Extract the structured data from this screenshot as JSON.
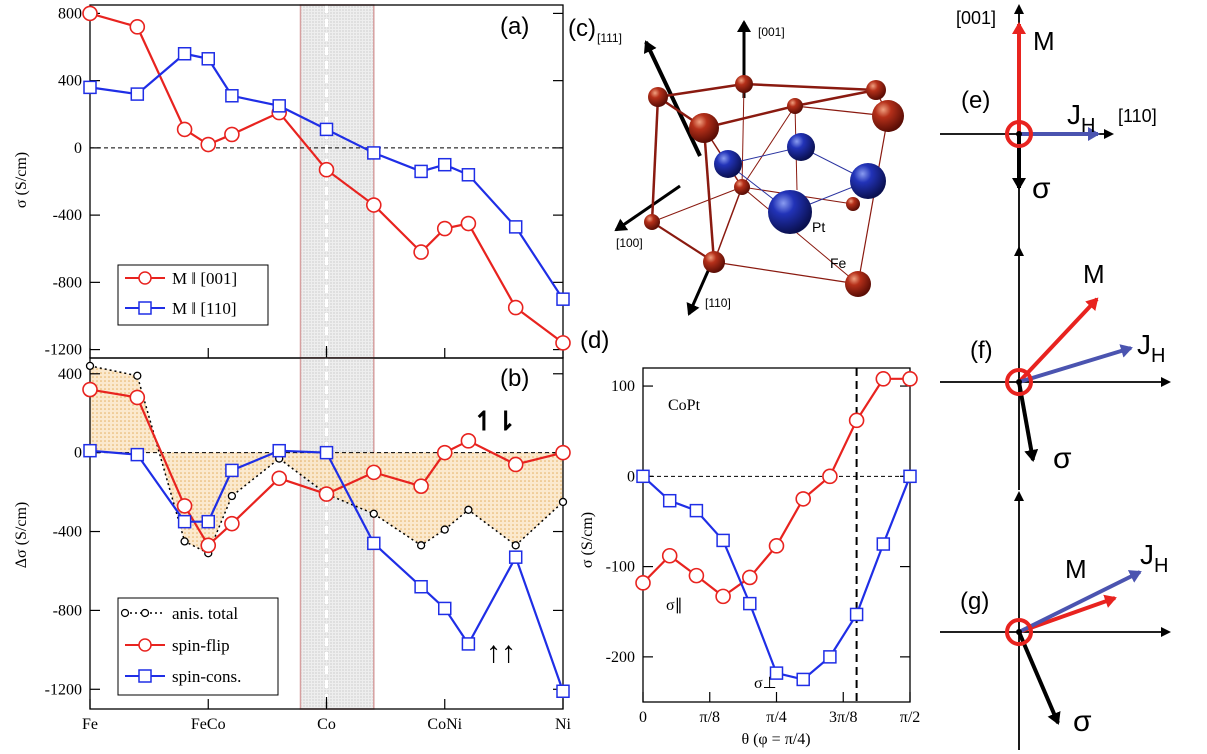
{
  "chart_data": [
    {
      "type": "line",
      "panel_label": "(a)",
      "ylabel": "σ (S/cm)",
      "ylim": [
        -1250,
        850
      ],
      "yticks": [
        800,
        400,
        0,
        -400,
        -800,
        -1200
      ],
      "xticks": [
        "Fe",
        "FeCo",
        "Co",
        "CoNi",
        "Ni"
      ],
      "xtick_pos": [
        0,
        0.25,
        0.5,
        0.75,
        1.0
      ],
      "xlim": [
        0,
        1
      ],
      "shaded_region": [
        0.445,
        0.6
      ],
      "legend": "lower-left",
      "series": [
        {
          "name": "M ‖ [001]",
          "color": "#e8231f",
          "marker": "circle",
          "x": [
            0,
            0.1,
            0.2,
            0.25,
            0.3,
            0.4,
            0.5,
            0.6,
            0.7,
            0.75,
            0.8,
            0.9,
            1.0
          ],
          "y": [
            800,
            720,
            110,
            20,
            80,
            210,
            -130,
            -340,
            -620,
            -480,
            -450,
            -950,
            -1160
          ]
        },
        {
          "name": "M ‖ [110]",
          "color": "#1f2ee6",
          "marker": "square",
          "x": [
            0,
            0.1,
            0.2,
            0.25,
            0.3,
            0.4,
            0.5,
            0.6,
            0.7,
            0.75,
            0.8,
            0.9,
            1.0
          ],
          "y": [
            360,
            320,
            560,
            530,
            310,
            250,
            110,
            -30,
            -140,
            -100,
            -160,
            -470,
            -900
          ]
        }
      ]
    },
    {
      "type": "line",
      "panel_label": "(b)",
      "ylabel": "Δσ (S/cm)",
      "ylim": [
        -1300,
        480
      ],
      "yticks": [
        400,
        0,
        -400,
        -800,
        -1200
      ],
      "xticks": [
        "Fe",
        "FeCo",
        "Co",
        "CoNi",
        "Ni"
      ],
      "xtick_pos": [
        0,
        0.25,
        0.5,
        0.75,
        1.0
      ],
      "xlim": [
        0,
        1
      ],
      "shaded_region": [
        0.445,
        0.6
      ],
      "legend": "lower-left",
      "annotations": [
        "↿⇂",
        "↑↑"
      ],
      "series": [
        {
          "name": "anis. total",
          "color": "#000000",
          "marker": "small-circle",
          "x": [
            0,
            0.1,
            0.2,
            0.25,
            0.3,
            0.4,
            0.5,
            0.6,
            0.7,
            0.75,
            0.8,
            0.9,
            1.0
          ],
          "y": [
            440,
            390,
            -450,
            -510,
            -220,
            -30,
            -210,
            -310,
            -470,
            -390,
            -290,
            -470,
            -250
          ]
        },
        {
          "name": "spin-flip",
          "color": "#e8231f",
          "marker": "circle",
          "x": [
            0,
            0.1,
            0.2,
            0.25,
            0.3,
            0.4,
            0.5,
            0.6,
            0.7,
            0.75,
            0.8,
            0.9,
            1.0
          ],
          "y": [
            320,
            280,
            -270,
            -470,
            -360,
            -130,
            -210,
            -100,
            -170,
            0,
            60,
            -60,
            0
          ]
        },
        {
          "name": "spin-cons.",
          "color": "#1f2ee6",
          "marker": "square",
          "x": [
            0,
            0.1,
            0.2,
            0.25,
            0.3,
            0.4,
            0.5,
            0.6,
            0.7,
            0.75,
            0.8,
            0.9,
            1.0
          ],
          "y": [
            10,
            -10,
            -350,
            -350,
            -90,
            10,
            0,
            -460,
            -680,
            -790,
            -970,
            -530,
            -1210
          ]
        }
      ]
    },
    {
      "type": "line",
      "panel_label": "(d)",
      "title": "CoPt",
      "ylabel": "σ (S/cm)",
      "xlabel": "θ (φ = π/4)",
      "ylim": [
        -250,
        120
      ],
      "yticks": [
        100,
        0,
        -100,
        -200
      ],
      "xticks": [
        "0",
        "π/8",
        "π/4",
        "3π/8",
        "π/2"
      ],
      "xlim": [
        0,
        90
      ],
      "vertical_line_x": 72,
      "series": [
        {
          "name": "σ∥",
          "color": "#e8231f",
          "marker": "circle",
          "x": [
            0,
            9,
            18,
            27,
            36,
            45,
            54,
            63,
            72,
            81,
            90
          ],
          "y": [
            -118,
            -88,
            -110,
            -133,
            -112,
            -77,
            -25,
            0,
            62,
            108,
            108
          ]
        },
        {
          "name": "σ⊥",
          "color": "#1f2ee6",
          "marker": "square",
          "x": [
            0,
            9,
            18,
            27,
            36,
            45,
            54,
            63,
            72,
            81,
            90
          ],
          "y": [
            0,
            -27,
            -38,
            -71,
            -141,
            -218,
            -225,
            -200,
            -153,
            -75,
            0
          ]
        }
      ]
    }
  ],
  "panel_c": {
    "label": "(c)",
    "axes": [
      "[111]",
      "[001]",
      "[100]",
      "[110]"
    ],
    "atoms": [
      "Pt",
      "Fe"
    ]
  },
  "panel_efg": {
    "e": {
      "label": "(e)",
      "axis_up": "[001]",
      "axis_right": "[110]",
      "M": "M",
      "J": "J",
      "J_sub": "H",
      "sigma": "σ"
    },
    "f": {
      "label": "(f)",
      "M": "M",
      "J": "J",
      "J_sub": "H",
      "sigma": "σ"
    },
    "g": {
      "label": "(g)",
      "M": "M",
      "J": "J",
      "J_sub": "H",
      "sigma": "σ"
    }
  }
}
